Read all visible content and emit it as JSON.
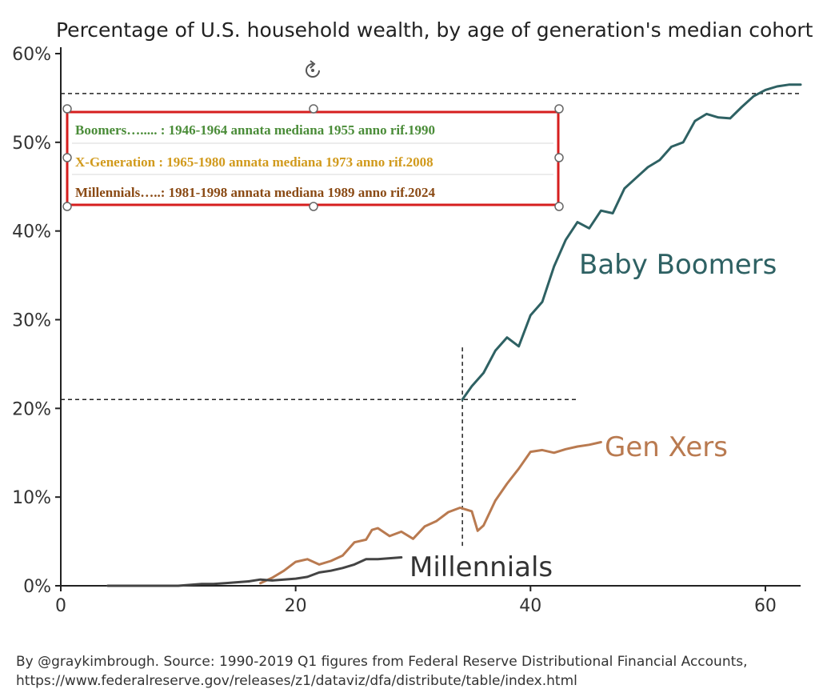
{
  "chart_data": {
    "type": "line",
    "title": "Percentage of U.S. household wealth, by age of generation's median cohort",
    "xlabel": "",
    "ylabel": "",
    "xlim": [
      0,
      63
    ],
    "ylim": [
      0,
      60
    ],
    "x_ticks": [
      0,
      20,
      40,
      60
    ],
    "x_tick_labels": [
      "0",
      "20",
      "40",
      "60"
    ],
    "y_ticks": [
      0,
      10,
      20,
      30,
      40,
      50,
      60
    ],
    "y_tick_labels": [
      "0%",
      "10%",
      "20%",
      "30%",
      "40%",
      "50%",
      "60%"
    ],
    "grid": false,
    "series": [
      {
        "name": "Baby Boomers",
        "label": "Baby Boomers",
        "color": "#2e6163",
        "x": [
          34.2,
          35,
          36,
          37,
          38,
          39,
          40,
          41,
          42,
          43,
          44,
          45,
          46,
          47,
          48,
          49,
          50,
          51,
          52,
          53,
          54,
          55,
          56,
          57,
          58,
          59,
          60,
          61,
          62,
          63
        ],
        "values": [
          21,
          22.5,
          24,
          26.5,
          28,
          27,
          30.5,
          32,
          36,
          39,
          41,
          40.3,
          42.3,
          42,
          44.8,
          46,
          47.2,
          48,
          49.5,
          50,
          52.4,
          53.2,
          52.8,
          52.7,
          54,
          55.2,
          55.9,
          56.3,
          56.5,
          56.5
        ]
      },
      {
        "name": "Gen Xers",
        "label": "Gen Xers",
        "color": "#b97a50",
        "x": [
          17,
          18,
          19,
          20,
          21,
          22,
          23,
          24,
          25,
          26,
          26.5,
          27,
          28,
          29,
          30,
          31,
          32,
          33,
          34,
          35,
          35.5,
          36,
          37,
          38,
          39,
          40,
          41,
          42,
          43,
          44,
          45,
          46
        ],
        "values": [
          0.3,
          0.9,
          1.7,
          2.7,
          3.0,
          2.4,
          2.8,
          3.4,
          4.9,
          5.2,
          6.3,
          6.5,
          5.6,
          6.1,
          5.3,
          6.7,
          7.3,
          8.3,
          8.8,
          8.4,
          6.2,
          6.8,
          9.6,
          11.5,
          13.2,
          15.1,
          15.3,
          15.0,
          15.4,
          15.7,
          15.9,
          16.2
        ]
      },
      {
        "name": "Millennials",
        "label": "Millennials",
        "color": "#444444",
        "x": [
          16,
          17,
          18,
          19,
          20,
          21,
          22,
          23,
          24,
          25,
          26,
          27,
          28,
          29
        ],
        "values": [
          0.5,
          0.7,
          0.6,
          0.7,
          0.8,
          1.0,
          1.5,
          1.7,
          2.0,
          2.4,
          3.0,
          3.0,
          3.1,
          3.2
        ]
      },
      {
        "name": "Early years (shared)",
        "label": "",
        "color": "#444444",
        "x": [
          4,
          6,
          8,
          10,
          11,
          12,
          13,
          14,
          15,
          16
        ],
        "values": [
          0,
          0,
          0,
          0,
          0.1,
          0.2,
          0.2,
          0.3,
          0.4,
          0.5
        ]
      }
    ],
    "reference_lines": [
      {
        "orientation": "horizontal",
        "value": 55.5,
        "x_range": [
          0,
          63
        ],
        "style": "dashed"
      },
      {
        "orientation": "horizontal",
        "value": 21,
        "x_range": [
          0,
          44
        ],
        "style": "dashed"
      },
      {
        "orientation": "vertical",
        "value": 34.2,
        "y_range": [
          4.5,
          27
        ],
        "style": "dashed"
      }
    ],
    "legend_box": {
      "placement": "top-left",
      "border_color": "#d61e1e",
      "rows": [
        {
          "text": "Boomers…..... : 1946-1964  annata mediana 1955  anno rif.1990",
          "color": "#4a8c38"
        },
        {
          "text": "X-Generation : 1965-1980   annata mediana 1973 anno rif.2008",
          "color": "#d19a1c"
        },
        {
          "text": "Millennials…..: 1981-1998   annata mediana 1989 anno rif.2024",
          "color": "#8a4a14"
        }
      ]
    },
    "source_lines": [
      "By @graykimbrough. Source: 1990-2019 Q1 figures from Federal Reserve Distributional Financial Accounts,",
      "https://www.federalreserve.gov/releases/z1/dataviz/dfa/distribute/table/index.html"
    ]
  }
}
